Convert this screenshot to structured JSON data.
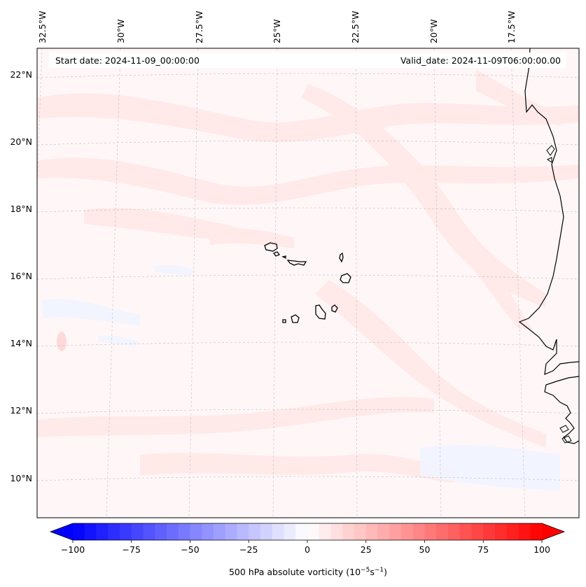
{
  "header": {
    "start_date": "Start date: 2024-11-09_00:00:00",
    "valid_date": "Valid_date: 2024-11-09T06:00:00.00"
  },
  "map": {
    "field": "500 hPa absolute vorticity",
    "lon_labels": [
      "32.5°W",
      "30°W",
      "27.5°W",
      "25°W",
      "22.5°W",
      "20°W",
      "17.5°W"
    ],
    "lat_labels": [
      "22°N",
      "20°N",
      "18°N",
      "16°N",
      "14°N",
      "12°N",
      "10°N"
    ],
    "gridlines": true,
    "coastline_color": "#000000",
    "islands": [
      "Santo Antão",
      "São Vicente",
      "Santa Luzia",
      "São Nicolau",
      "Sal",
      "Boa Vista",
      "Maio",
      "Santiago",
      "Fogo",
      "Brava"
    ]
  },
  "colorbar": {
    "label_text": "500 hPa absolute vorticity (10",
    "label_sup1": "−5",
    "label_mid": "s",
    "label_sup2": "−1",
    "label_end": ")",
    "tick_labels": [
      "−100",
      "−75",
      "−50",
      "−25",
      "0",
      "25",
      "50",
      "75",
      "100"
    ],
    "tick_values": [
      -100,
      -75,
      -50,
      -25,
      0,
      25,
      50,
      75,
      100
    ],
    "min": -100,
    "max": 100,
    "step": 5,
    "colormap": "bwr",
    "extend": "both",
    "low_color": "#0000ff",
    "mid_color": "#ffffff",
    "high_color": "#ff0000"
  }
}
